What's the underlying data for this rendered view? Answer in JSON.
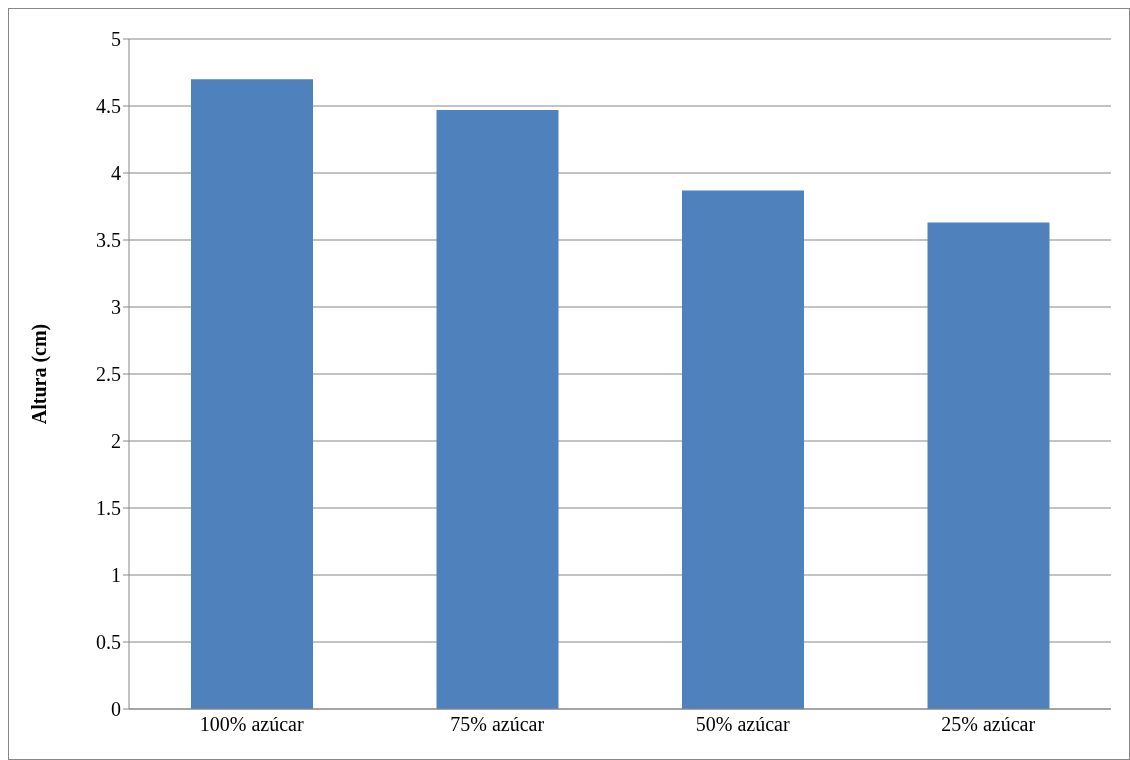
{
  "chart_data": {
    "type": "bar",
    "ylabel": "Altura (cm)",
    "categories": [
      "100% azúcar",
      "75% azúcar",
      "50% azúcar",
      "25% azúcar"
    ],
    "values": [
      4.7,
      4.47,
      3.87,
      3.63
    ],
    "color": "#4f81bd",
    "ylim": [
      0,
      5
    ],
    "yticks": [
      0,
      0.5,
      1,
      1.5,
      2,
      2.5,
      3,
      3.5,
      4,
      4.5,
      5
    ],
    "grid": "y"
  }
}
